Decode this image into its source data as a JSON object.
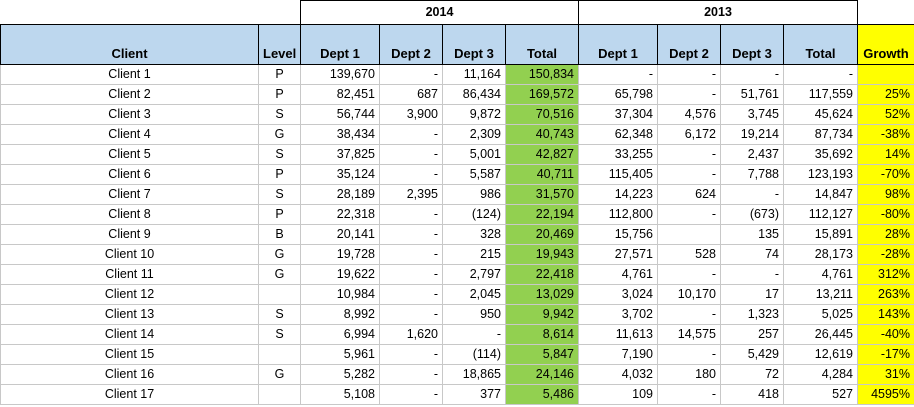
{
  "years": [
    "2014",
    "2013"
  ],
  "headers": {
    "client": "Client",
    "level": "Level",
    "dept1": "Dept 1",
    "dept2": "Dept 2",
    "dept3": "Dept 3",
    "total": "Total",
    "growth": "Growth"
  },
  "colors": {
    "header_bg": "#bdd7ee",
    "total_2014_bg": "#92d050",
    "growth_bg": "#ffff00"
  },
  "rows": [
    {
      "client": "Client 1",
      "level": "P",
      "d1_14": "139,670",
      "d2_14": "-",
      "d3_14": "11,164",
      "t14": "150,834",
      "d1_13": "-",
      "d2_13": "-",
      "d3_13": "-",
      "t13": "-",
      "growth": ""
    },
    {
      "client": "Client 2",
      "level": "P",
      "d1_14": "82,451",
      "d2_14": "687",
      "d3_14": "86,434",
      "t14": "169,572",
      "d1_13": "65,798",
      "d2_13": "-",
      "d3_13": "51,761",
      "t13": "117,559",
      "growth": "25%"
    },
    {
      "client": "Client 3",
      "level": "S",
      "d1_14": "56,744",
      "d2_14": "3,900",
      "d3_14": "9,872",
      "t14": "70,516",
      "d1_13": "37,304",
      "d2_13": "4,576",
      "d3_13": "3,745",
      "t13": "45,624",
      "growth": "52%"
    },
    {
      "client": "Client 4",
      "level": "G",
      "d1_14": "38,434",
      "d2_14": "-",
      "d3_14": "2,309",
      "t14": "40,743",
      "d1_13": "62,348",
      "d2_13": "6,172",
      "d3_13": "19,214",
      "t13": "87,734",
      "growth": "-38%"
    },
    {
      "client": "Client 5",
      "level": "S",
      "d1_14": "37,825",
      "d2_14": "-",
      "d3_14": "5,001",
      "t14": "42,827",
      "d1_13": "33,255",
      "d2_13": "-",
      "d3_13": "2,437",
      "t13": "35,692",
      "growth": "14%"
    },
    {
      "client": "Client 6",
      "level": "P",
      "d1_14": "35,124",
      "d2_14": "-",
      "d3_14": "5,587",
      "t14": "40,711",
      "d1_13": "115,405",
      "d2_13": "-",
      "d3_13": "7,788",
      "t13": "123,193",
      "growth": "-70%"
    },
    {
      "client": "Client 7",
      "level": "S",
      "d1_14": "28,189",
      "d2_14": "2,395",
      "d3_14": "986",
      "t14": "31,570",
      "d1_13": "14,223",
      "d2_13": "624",
      "d3_13": "-",
      "t13": "14,847",
      "growth": "98%"
    },
    {
      "client": "Client 8",
      "level": "P",
      "d1_14": "22,318",
      "d2_14": "-",
      "d3_14": "(124)",
      "t14": "22,194",
      "d1_13": "112,800",
      "d2_13": "-",
      "d3_13": "(673)",
      "t13": "112,127",
      "growth": "-80%"
    },
    {
      "client": "Client 9",
      "level": "B",
      "d1_14": "20,141",
      "d2_14": "-",
      "d3_14": "328",
      "t14": "20,469",
      "d1_13": "15,756",
      "d2_13": "",
      "d3_13": "135",
      "t13": "15,891",
      "growth": "28%"
    },
    {
      "client": "Client 10",
      "level": "G",
      "d1_14": "19,728",
      "d2_14": "-",
      "d3_14": "215",
      "t14": "19,943",
      "d1_13": "27,571",
      "d2_13": "528",
      "d3_13": "74",
      "t13": "28,173",
      "growth": "-28%"
    },
    {
      "client": "Client 11",
      "level": "G",
      "d1_14": "19,622",
      "d2_14": "-",
      "d3_14": "2,797",
      "t14": "22,418",
      "d1_13": "4,761",
      "d2_13": "-",
      "d3_13": "-",
      "t13": "4,761",
      "growth": "312%"
    },
    {
      "client": "Client 12",
      "level": "",
      "d1_14": "10,984",
      "d2_14": "-",
      "d3_14": "2,045",
      "t14": "13,029",
      "d1_13": "3,024",
      "d2_13": "10,170",
      "d3_13": "17",
      "t13": "13,211",
      "growth": "263%"
    },
    {
      "client": "Client 13",
      "level": "S",
      "d1_14": "8,992",
      "d2_14": "-",
      "d3_14": "950",
      "t14": "9,942",
      "d1_13": "3,702",
      "d2_13": "-",
      "d3_13": "1,323",
      "t13": "5,025",
      "growth": "143%"
    },
    {
      "client": "Client 14",
      "level": "S",
      "d1_14": "6,994",
      "d2_14": "1,620",
      "d3_14": "-",
      "t14": "8,614",
      "d1_13": "11,613",
      "d2_13": "14,575",
      "d3_13": "257",
      "t13": "26,445",
      "growth": "-40%"
    },
    {
      "client": "Client 15",
      "level": "",
      "d1_14": "5,961",
      "d2_14": "-",
      "d3_14": "(114)",
      "t14": "5,847",
      "d1_13": "7,190",
      "d2_13": "-",
      "d3_13": "5,429",
      "t13": "12,619",
      "growth": "-17%"
    },
    {
      "client": "Client 16",
      "level": "G",
      "d1_14": "5,282",
      "d2_14": "-",
      "d3_14": "18,865",
      "t14": "24,146",
      "d1_13": "4,032",
      "d2_13": "180",
      "d3_13": "72",
      "t13": "4,284",
      "growth": "31%"
    },
    {
      "client": "Client 17",
      "level": "",
      "d1_14": "5,108",
      "d2_14": "-",
      "d3_14": "377",
      "t14": "5,486",
      "d1_13": "109",
      "d2_13": "-",
      "d3_13": "418",
      "t13": "527",
      "growth": "4595%"
    }
  ]
}
